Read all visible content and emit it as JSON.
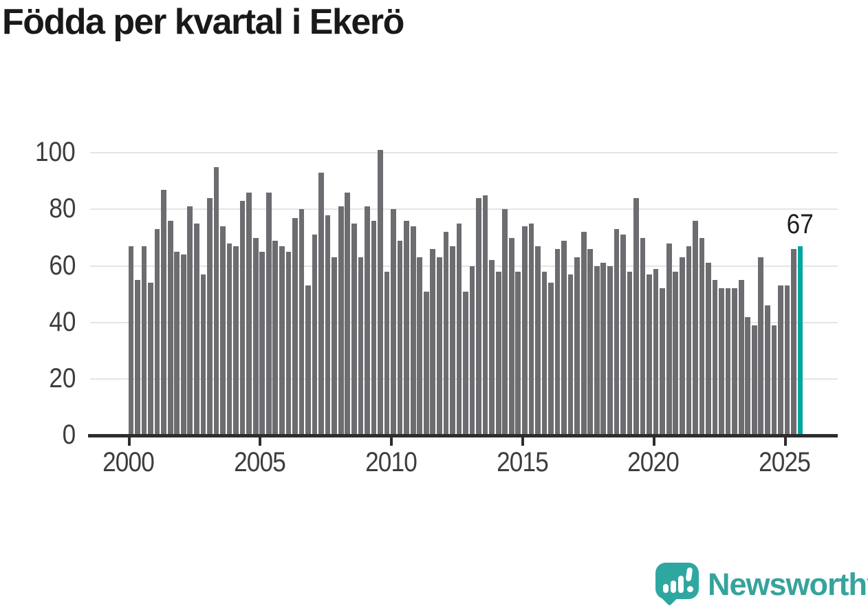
{
  "title": "Födda per kvartal i Ekerö",
  "chart_data": {
    "type": "bar",
    "title": "Födda per kvartal i Ekerö",
    "start_year": 2000,
    "start_quarter": 1,
    "values": [
      67,
      55,
      67,
      54,
      73,
      87,
      76,
      65,
      64,
      81,
      75,
      57,
      84,
      95,
      74,
      68,
      67,
      83,
      86,
      70,
      65,
      86,
      69,
      67,
      65,
      77,
      80,
      53,
      71,
      93,
      78,
      63,
      81,
      86,
      75,
      63,
      81,
      76,
      101,
      58,
      80,
      69,
      76,
      74,
      63,
      51,
      66,
      63,
      72,
      67,
      75,
      51,
      60,
      84,
      85,
      62,
      58,
      80,
      70,
      58,
      74,
      75,
      67,
      58,
      54,
      66,
      69,
      57,
      63,
      72,
      66,
      60,
      61,
      60,
      73,
      71,
      58,
      84,
      70,
      57,
      59,
      52,
      68,
      58,
      63,
      67,
      76,
      70,
      61,
      55,
      52,
      52,
      52,
      55,
      42,
      39,
      63,
      46,
      39,
      53,
      53,
      66,
      67
    ],
    "yticks": [
      0,
      20,
      40,
      60,
      80,
      100
    ],
    "xticks": [
      "2000",
      "2005",
      "2010",
      "2015",
      "2020",
      "2025"
    ],
    "ylim": [
      0,
      103
    ],
    "grid": true,
    "legend": "none",
    "bar_color": "#6c6c71",
    "highlight_last_bar": true,
    "highlight_color": "#00a6a0",
    "last_value_label": "67"
  },
  "annotation": {
    "last_value_label": "67"
  },
  "branding": {
    "wordmark": "Newsworthy",
    "logo_color": "#2ea7a1",
    "wordmark_color": "#36a39c",
    "logo_icon": "speech-bubble-with-bar-chart-and-exclamation"
  }
}
